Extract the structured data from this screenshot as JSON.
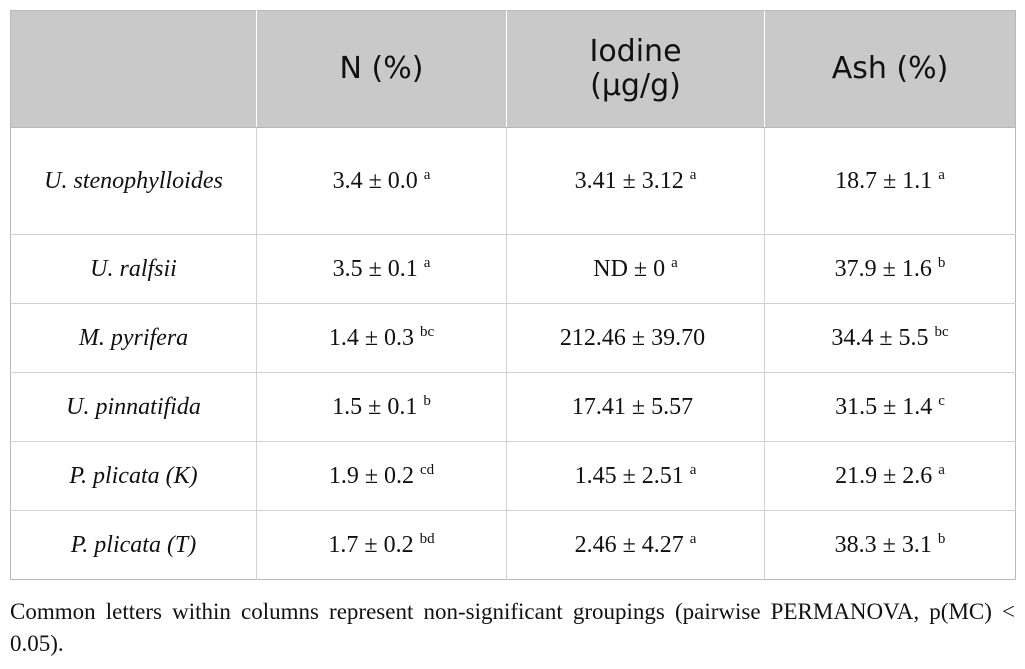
{
  "table": {
    "headers": [
      {
        "id": "species",
        "label": ""
      },
      {
        "id": "n",
        "label": "N (%)"
      },
      {
        "id": "iodine",
        "label": "Iodine",
        "label2": "(µg/g)"
      },
      {
        "id": "ash",
        "label": "Ash (%)"
      }
    ],
    "rows": [
      {
        "species": "U. stenophylloides",
        "n": "3.4 ± 0.0",
        "n_sup": "a",
        "iodine": "3.41 ± 3.12",
        "iodine_sup": "a",
        "ash": "18.7 ± 1.1",
        "ash_sup": "a"
      },
      {
        "species": "U. ralfsii",
        "n": "3.5 ± 0.1",
        "n_sup": "a",
        "iodine": "ND ± 0",
        "iodine_sup": "a",
        "ash": "37.9 ± 1.6",
        "ash_sup": "b"
      },
      {
        "species": "M. pyrifera",
        "n": "1.4 ± 0.3",
        "n_sup": "bc",
        "iodine": "212.46 ± 39.70",
        "iodine_sup": "",
        "ash": "34.4 ± 5.5",
        "ash_sup": "bc"
      },
      {
        "species": "U. pinnatifida",
        "n": "1.5 ± 0.1",
        "n_sup": "b",
        "iodine": "17.41 ± 5.57",
        "iodine_sup": "",
        "ash": "31.5 ± 1.4",
        "ash_sup": "c"
      },
      {
        "species": "P. plicata (K)",
        "n": "1.9 ± 0.2",
        "n_sup": "cd",
        "iodine": "1.45 ± 2.51",
        "iodine_sup": "a",
        "ash": "21.9 ± 2.6",
        "ash_sup": "a"
      },
      {
        "species": "P. plicata (T)",
        "n": "1.7 ± 0.2",
        "n_sup": "bd",
        "iodine": "2.46 ± 4.27",
        "iodine_sup": "a",
        "ash": "38.3 ± 3.1",
        "ash_sup": "b"
      }
    ]
  },
  "footnote": "Common letters within columns represent non-significant groupings (pairwise PERMANOVA, p(MC) < 0.05)."
}
